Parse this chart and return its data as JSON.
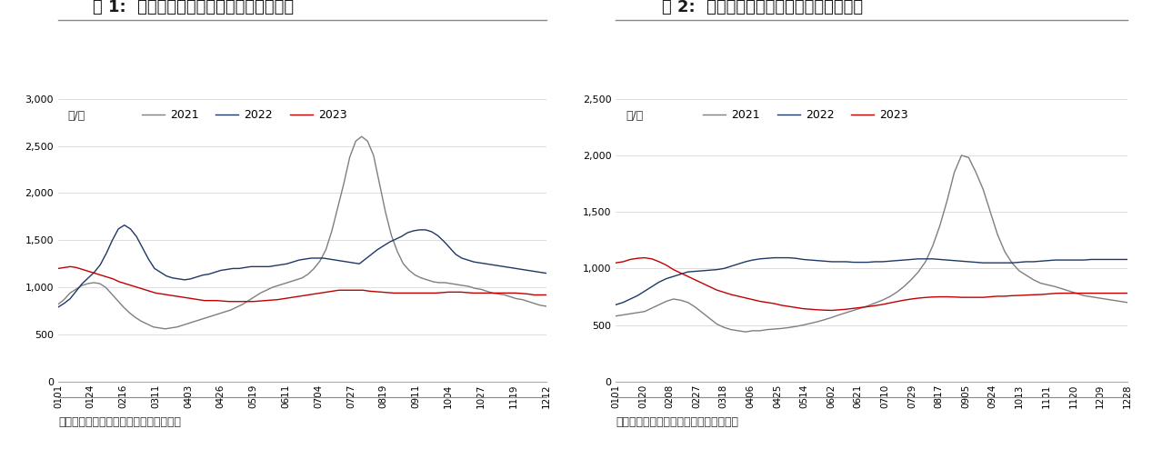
{
  "fig1_title": "图 1:  本周秦皇岛港口动力煤价格环比上涨",
  "fig2_title": "图 2:  本周山西地区动力煤坑口价环比上涨",
  "fig1_source": "资料来源：煤炭市场网、国海证券研究所",
  "fig2_source": "资料来源：煤炭资源网、国海证券研究所",
  "ylabel": "元/吨",
  "fig1_xticks": [
    "0101",
    "0124",
    "0216",
    "0311",
    "0403",
    "0426",
    "0519",
    "0611",
    "0704",
    "0727",
    "0819",
    "0911",
    "1004",
    "1027",
    "1119",
    "1212"
  ],
  "fig2_xticks": [
    "0101",
    "0120",
    "0208",
    "0227",
    "0318",
    "0406",
    "0425",
    "0514",
    "0602",
    "0621",
    "0710",
    "0729",
    "0817",
    "0905",
    "0924",
    "1013",
    "1101",
    "1120",
    "1209",
    "1228"
  ],
  "fig1_ylim": [
    0,
    3000
  ],
  "fig2_ylim": [
    0,
    2500
  ],
  "fig1_yticks": [
    0,
    500,
    1000,
    1500,
    2000,
    2500,
    3000
  ],
  "fig2_yticks": [
    0,
    500,
    1000,
    1500,
    2000,
    2500
  ],
  "color_2021": "#7f7f7f",
  "color_2022": "#1f3864",
  "color_2023": "#c00000",
  "background_color": "#ffffff",
  "title_color": "#1a1a1a",
  "source_color": "#333333",
  "fig1_2021": [
    820,
    870,
    940,
    980,
    1020,
    1040,
    1050,
    1040,
    1000,
    930,
    860,
    790,
    730,
    680,
    640,
    610,
    580,
    570,
    560,
    570,
    580,
    600,
    620,
    640,
    660,
    680,
    700,
    720,
    740,
    760,
    790,
    820,
    860,
    900,
    940,
    970,
    1000,
    1020,
    1040,
    1060,
    1080,
    1100,
    1140,
    1200,
    1280,
    1400,
    1600,
    1850,
    2100,
    2380,
    2550,
    2600,
    2550,
    2400,
    2100,
    1800,
    1550,
    1380,
    1250,
    1180,
    1130,
    1100,
    1080,
    1060,
    1050,
    1050,
    1040,
    1030,
    1020,
    1010,
    990,
    980,
    960,
    940,
    930,
    920,
    900,
    880,
    870,
    850,
    830,
    810,
    800
  ],
  "fig1_2022": [
    790,
    830,
    880,
    960,
    1040,
    1100,
    1160,
    1240,
    1360,
    1500,
    1620,
    1660,
    1620,
    1540,
    1420,
    1300,
    1200,
    1160,
    1120,
    1100,
    1090,
    1080,
    1090,
    1110,
    1130,
    1140,
    1160,
    1180,
    1190,
    1200,
    1200,
    1210,
    1220,
    1220,
    1220,
    1220,
    1230,
    1240,
    1250,
    1270,
    1290,
    1300,
    1310,
    1310,
    1310,
    1300,
    1290,
    1280,
    1270,
    1260,
    1250,
    1300,
    1350,
    1400,
    1440,
    1480,
    1510,
    1540,
    1580,
    1600,
    1610,
    1610,
    1590,
    1550,
    1490,
    1420,
    1350,
    1310,
    1290,
    1270,
    1260,
    1250,
    1240,
    1230,
    1220,
    1210,
    1200,
    1190,
    1180,
    1170,
    1160,
    1150
  ],
  "fig1_2023": [
    1200,
    1210,
    1220,
    1210,
    1190,
    1170,
    1150,
    1130,
    1110,
    1090,
    1060,
    1040,
    1020,
    1000,
    980,
    960,
    940,
    930,
    920,
    910,
    900,
    890,
    880,
    870,
    860,
    860,
    860,
    855,
    850,
    850,
    850,
    850,
    850,
    855,
    860,
    865,
    870,
    880,
    890,
    900,
    910,
    920,
    930,
    940,
    950,
    960,
    970,
    970,
    970,
    970,
    970,
    960,
    955,
    950,
    945,
    940,
    940,
    940,
    940,
    940,
    940,
    940,
    940,
    945,
    950,
    950,
    950,
    945,
    940,
    940,
    940,
    940,
    940,
    940,
    940,
    940,
    935,
    930,
    920,
    920,
    920
  ],
  "fig2_2021": [
    580,
    590,
    600,
    610,
    620,
    650,
    680,
    710,
    730,
    720,
    700,
    660,
    610,
    560,
    510,
    480,
    460,
    450,
    440,
    450,
    450,
    460,
    465,
    470,
    478,
    488,
    500,
    515,
    530,
    548,
    568,
    590,
    610,
    630,
    650,
    670,
    695,
    720,
    750,
    790,
    840,
    900,
    970,
    1060,
    1200,
    1380,
    1600,
    1850,
    2000,
    1980,
    1850,
    1700,
    1500,
    1300,
    1150,
    1050,
    980,
    940,
    900,
    870,
    855,
    840,
    820,
    800,
    780,
    760,
    750,
    740,
    730,
    720,
    710,
    700
  ],
  "fig2_2022": [
    680,
    700,
    730,
    760,
    800,
    840,
    880,
    910,
    930,
    950,
    970,
    975,
    980,
    985,
    990,
    1000,
    1020,
    1040,
    1060,
    1075,
    1085,
    1090,
    1095,
    1095,
    1095,
    1090,
    1080,
    1075,
    1070,
    1065,
    1060,
    1060,
    1060,
    1055,
    1055,
    1055,
    1060,
    1060,
    1065,
    1070,
    1075,
    1080,
    1085,
    1085,
    1085,
    1080,
    1075,
    1070,
    1065,
    1060,
    1055,
    1050,
    1050,
    1050,
    1050,
    1050,
    1055,
    1060,
    1060,
    1065,
    1070,
    1075,
    1075,
    1075,
    1075,
    1075,
    1080,
    1080,
    1080,
    1080,
    1080,
    1080
  ],
  "fig2_2023": [
    1050,
    1060,
    1080,
    1090,
    1095,
    1085,
    1060,
    1030,
    990,
    960,
    930,
    900,
    870,
    840,
    810,
    790,
    770,
    755,
    740,
    725,
    710,
    700,
    690,
    675,
    665,
    655,
    645,
    640,
    635,
    632,
    630,
    635,
    640,
    648,
    655,
    663,
    672,
    682,
    695,
    708,
    720,
    730,
    738,
    744,
    748,
    750,
    750,
    748,
    745,
    745,
    745,
    745,
    750,
    755,
    755,
    760,
    762,
    765,
    768,
    770,
    775,
    780,
    782,
    782,
    782,
    782,
    782,
    782,
    782,
    782,
    782,
    782
  ]
}
